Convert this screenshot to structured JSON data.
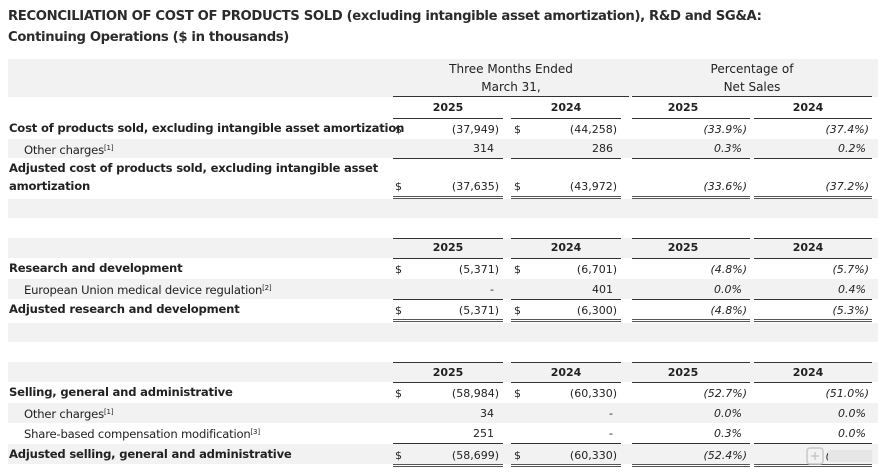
{
  "title": {
    "line1": "RECONCILIATION OF COST OF PRODUCTS SOLD (excluding intangible asset amortization), R&D and SG&A:",
    "line2": "Continuing Operations ($ in thousands)"
  },
  "header": {
    "three_months_line1": "Three Months Ended",
    "three_months_line2": "March 31,",
    "pct_line1": "Percentage of",
    "pct_line2": "Net Sales"
  },
  "years": [
    "2025",
    "2024",
    "2025",
    "2024"
  ],
  "currency": "$",
  "cogs": {
    "rows": [
      {
        "label": "Cost of products sold, excluding intangible asset amortization",
        "sup": "",
        "v2025": "(37,949)",
        "v2024": "(44,258)",
        "p2025": "(33.9%)",
        "p2024": "(37.4%)"
      },
      {
        "label": "Other charges",
        "sup": "[1]",
        "v2025": "314",
        "v2024": "286",
        "p2025": "0.3%",
        "p2024": "0.2%"
      }
    ],
    "total": {
      "label": "Adjusted cost of products sold, excluding intangible asset amortization",
      "v2025": "(37,635)",
      "v2024": "(43,972)",
      "p2025": "(33.6%)",
      "p2024": "(37.2%)"
    }
  },
  "rd": {
    "rows": [
      {
        "label": "Research and development",
        "sup": "",
        "v2025": "(5,371)",
        "v2024": "(6,701)",
        "p2025": "(4.8%)",
        "p2024": "(5.7%)"
      },
      {
        "label": "European Union medical device regulation",
        "sup": "[2]",
        "v2025": "-",
        "v2024": "401",
        "p2025": "0.0%",
        "p2024": "0.4%"
      }
    ],
    "total": {
      "label": "Adjusted research and development",
      "v2025": "(5,371)",
      "v2024": "(6,300)",
      "p2025": "(4.8%)",
      "p2024": "(5.3%)"
    }
  },
  "sga": {
    "rows": [
      {
        "label": "Selling, general and administrative",
        "sup": "",
        "v2025": "(58,984)",
        "v2024": "(60,330)",
        "p2025": "(52.7%)",
        "p2024": "(51.0%)"
      },
      {
        "label": "Other charges",
        "sup": "[1]",
        "v2025": "34",
        "v2024": "-",
        "p2025": "0.0%",
        "p2024": "0.0%"
      },
      {
        "label": "Share-based compensation modification",
        "sup": "[3]",
        "v2025": "251",
        "v2024": "-",
        "p2025": "0.3%",
        "p2024": "0.0%"
      }
    ],
    "total": {
      "label": "Adjusted selling, general and administrative",
      "v2025": "(58,699)",
      "v2024": "(60,330)",
      "p2025": "(52.4%)",
      "p2024": "(51.0%)"
    }
  }
}
